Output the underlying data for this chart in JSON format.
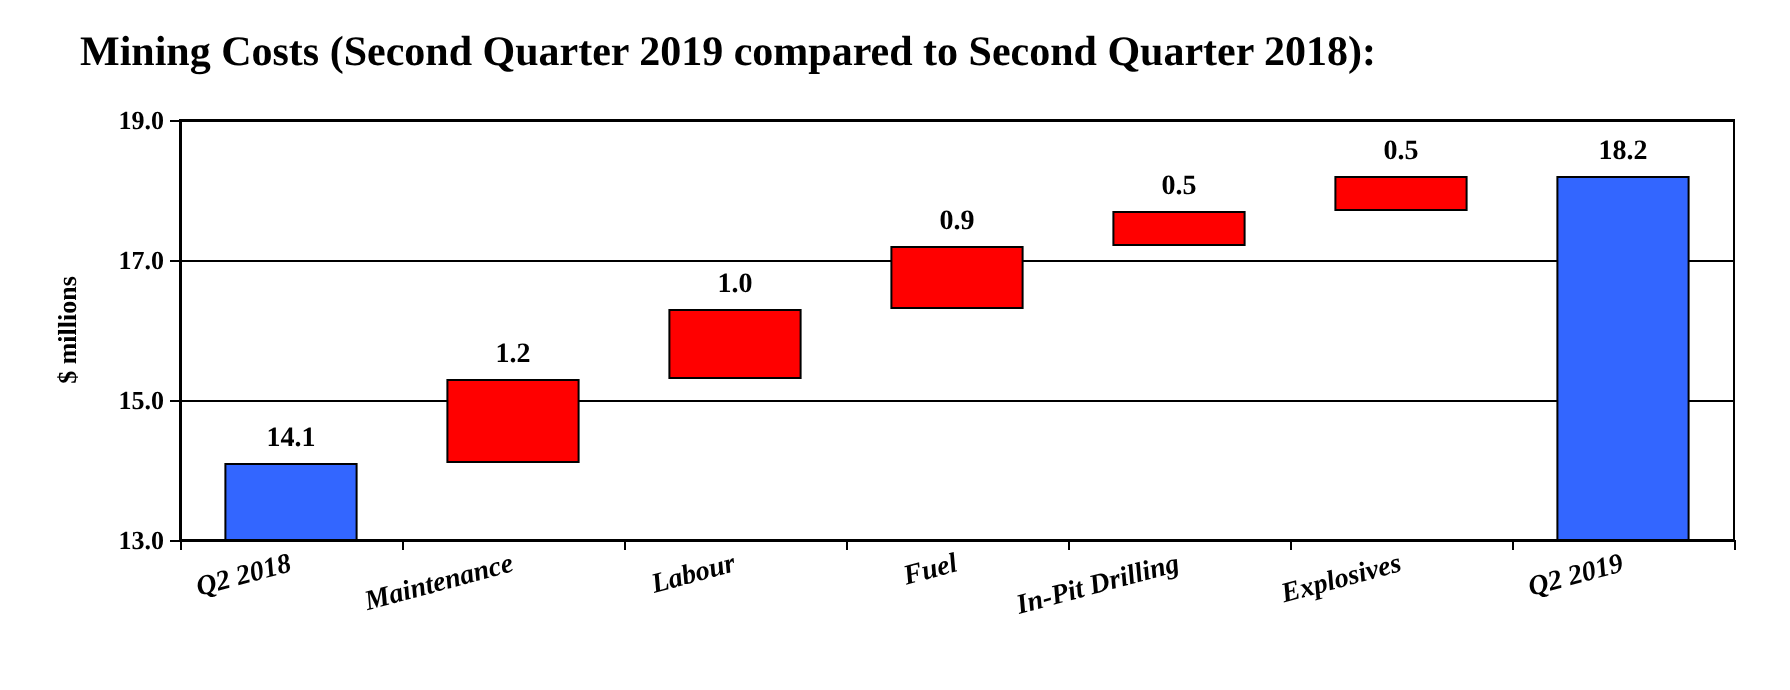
{
  "chart_data": {
    "type": "bar",
    "title": "Mining Costs (Second Quarter 2019 compared to Second Quarter 2018):",
    "ylabel": "$ millions",
    "categories": [
      "Q2 2018",
      "Maintenance",
      "Labour",
      "Fuel",
      "In-Pit Drilling",
      "Explosives",
      "Q2 2019"
    ],
    "values": [
      14.1,
      1.2,
      1.0,
      0.9,
      0.5,
      0.5,
      18.2
    ],
    "base": [
      null,
      14.1,
      15.3,
      16.3,
      17.2,
      17.7,
      null
    ],
    "colors": [
      "#3366ff",
      "#ff0000",
      "#ff0000",
      "#ff0000",
      "#ff0000",
      "#ff0000",
      "#3366ff"
    ],
    "value_labels": [
      "14.1",
      "1.2",
      "1.0",
      "0.9",
      "0.5",
      "0.5",
      "18.2"
    ],
    "ylim": [
      13,
      19
    ],
    "yticks": [
      {
        "value": 13,
        "label": "13.0"
      },
      {
        "value": 15,
        "label": "15.0"
      },
      {
        "value": 17,
        "label": "17.0"
      },
      {
        "value": 19,
        "label": "19.0"
      }
    ],
    "grid": "y"
  }
}
